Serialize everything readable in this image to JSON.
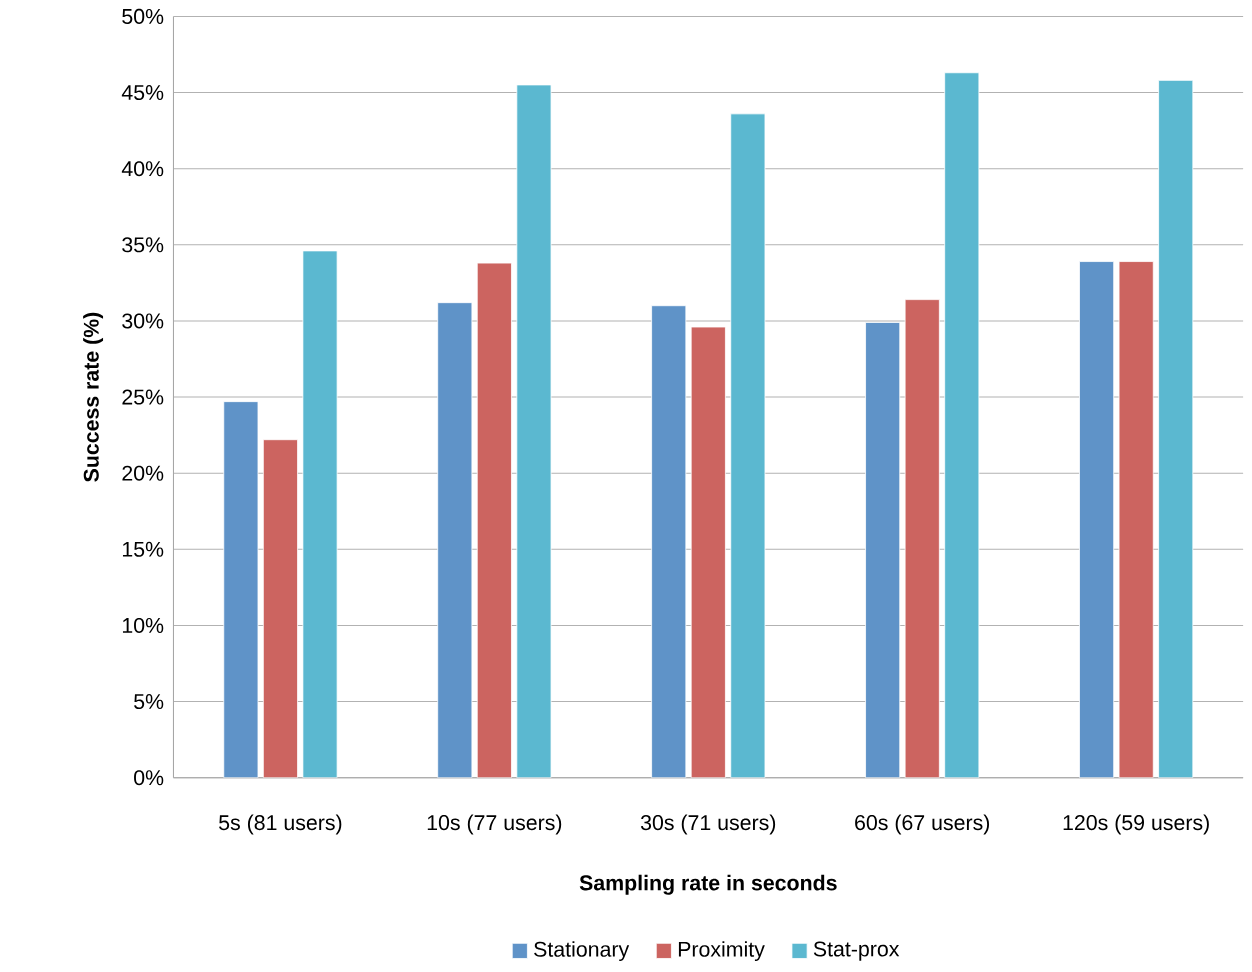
{
  "chart_data": {
    "type": "bar",
    "xlabel": "Sampling rate in seconds",
    "ylabel": "Success rate (%)",
    "categories": [
      "5s (81 users)",
      "10s (77 users)",
      "30s (71 users)",
      "60s (67 users)",
      "120s (59 users)"
    ],
    "series": [
      {
        "name": "Stationary",
        "color": "#5f93c8",
        "values": [
          24.7,
          31.2,
          31.0,
          29.9,
          33.9
        ]
      },
      {
        "name": "Proximity",
        "color": "#cc6460",
        "values": [
          22.2,
          33.8,
          29.6,
          31.4,
          33.9
        ]
      },
      {
        "name": "Stat-prox",
        "color": "#5bb8d0",
        "values": [
          34.6,
          45.5,
          43.6,
          46.3,
          45.8
        ]
      }
    ],
    "ylim": [
      0,
      50
    ],
    "yticks": [
      {
        "value": 0,
        "label": "0%"
      },
      {
        "value": 5,
        "label": "5%"
      },
      {
        "value": 10,
        "label": "10%"
      },
      {
        "value": 15,
        "label": "15%"
      },
      {
        "value": 20,
        "label": "20%"
      },
      {
        "value": 25,
        "label": "25%"
      },
      {
        "value": 30,
        "label": "30%"
      },
      {
        "value": 35,
        "label": "35%"
      },
      {
        "value": 40,
        "label": "40%"
      },
      {
        "value": 45,
        "label": "45%"
      },
      {
        "value": 50,
        "label": "50%"
      }
    ],
    "grid": "y",
    "legend": "bottom"
  }
}
